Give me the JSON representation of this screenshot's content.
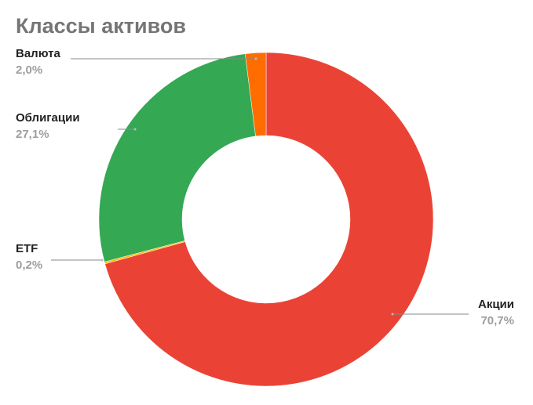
{
  "chart_data": {
    "type": "donut",
    "title": "Классы активов",
    "categories": [
      "Акции",
      "ETF",
      "Облигации",
      "Валюта"
    ],
    "values": [
      70.7,
      0.2,
      27.1,
      2.0
    ],
    "value_labels": [
      "70,7%",
      "0,2%",
      "27,1%",
      "2,0%"
    ],
    "colors": [
      "#ea4335",
      "#fbbc04",
      "#34a853",
      "#ff6d01"
    ]
  }
}
